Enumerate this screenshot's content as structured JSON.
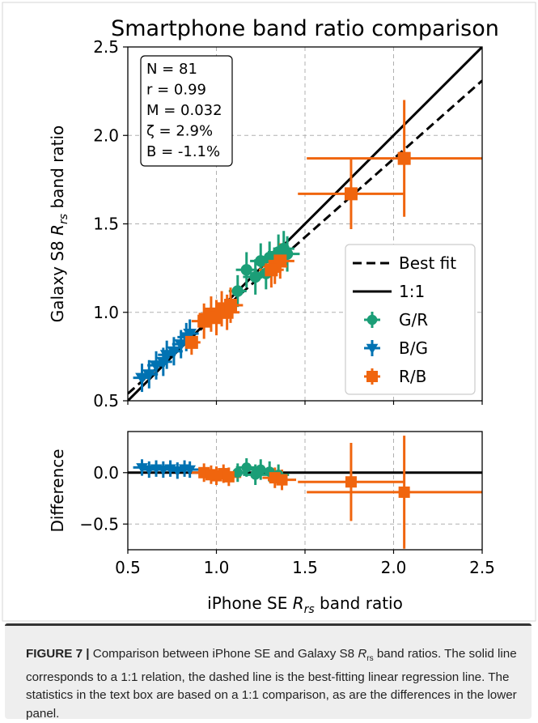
{
  "chart_data": [
    {
      "panel": "main",
      "type": "scatter",
      "title": "Smartphone band ratio comparison",
      "xlabel": "",
      "ylabel_prefix": "Galaxy S8 ",
      "ylabel_var": "R",
      "ylabel_sub": "rs",
      "ylabel_suffix": " band ratio",
      "xlim": [
        0.5,
        2.5
      ],
      "ylim": [
        0.5,
        2.5
      ],
      "xticks": [
        "0.5",
        "1.0",
        "1.5",
        "2.0",
        "2.5"
      ],
      "yticks": [
        "0.5",
        "1.0",
        "1.5",
        "2.0",
        "2.5"
      ],
      "grid": true,
      "stats_box": [
        "N = 81",
        "r = 0.99",
        "M = 0.032",
        "ζ = 2.9%",
        "B = -1.1%"
      ],
      "legend_position": "lower-right",
      "legend": [
        "Best fit",
        "1:1",
        "G/R",
        "B/G",
        "R/B"
      ],
      "lines": [
        {
          "name": "Best fit",
          "style": "dashed",
          "color": "#000000",
          "x": [
            0.5,
            2.5
          ],
          "y": [
            0.54,
            2.31
          ]
        },
        {
          "name": "1:1",
          "style": "solid",
          "color": "#000000",
          "x": [
            0.5,
            2.5
          ],
          "y": [
            0.5,
            2.5
          ]
        }
      ],
      "series": [
        {
          "name": "G/R",
          "marker": "circle",
          "color": "#1b9e77",
          "points": [
            {
              "x": 1.17,
              "y": 1.24,
              "xerr": 0.06,
              "yerr": 0.1
            },
            {
              "x": 1.22,
              "y": 1.2,
              "xerr": 0.07,
              "yerr": 0.1
            },
            {
              "x": 1.25,
              "y": 1.29,
              "xerr": 0.06,
              "yerr": 0.1
            },
            {
              "x": 1.3,
              "y": 1.31,
              "xerr": 0.06,
              "yerr": 0.09
            },
            {
              "x": 1.35,
              "y": 1.34,
              "xerr": 0.06,
              "yerr": 0.1
            },
            {
              "x": 1.4,
              "y": 1.33,
              "xerr": 0.07,
              "yerr": 0.1
            },
            {
              "x": 1.12,
              "y": 1.12,
              "xerr": 0.05,
              "yerr": 0.09
            },
            {
              "x": 1.28,
              "y": 1.22,
              "xerr": 0.06,
              "yerr": 0.09
            },
            {
              "x": 1.38,
              "y": 1.36,
              "xerr": 0.06,
              "yerr": 0.1
            }
          ]
        },
        {
          "name": "B/G",
          "marker": "triangle-down",
          "color": "#0072b2",
          "points": [
            {
              "x": 0.58,
              "y": 0.63,
              "xerr": 0.05,
              "yerr": 0.08
            },
            {
              "x": 0.62,
              "y": 0.65,
              "xerr": 0.05,
              "yerr": 0.08
            },
            {
              "x": 0.66,
              "y": 0.7,
              "xerr": 0.05,
              "yerr": 0.08
            },
            {
              "x": 0.7,
              "y": 0.72,
              "xerr": 0.05,
              "yerr": 0.08
            },
            {
              "x": 0.72,
              "y": 0.76,
              "xerr": 0.05,
              "yerr": 0.08
            },
            {
              "x": 0.76,
              "y": 0.78,
              "xerr": 0.05,
              "yerr": 0.08
            },
            {
              "x": 0.8,
              "y": 0.82,
              "xerr": 0.05,
              "yerr": 0.08
            },
            {
              "x": 0.83,
              "y": 0.86,
              "xerr": 0.05,
              "yerr": 0.08
            },
            {
              "x": 0.85,
              "y": 0.88,
              "xerr": 0.05,
              "yerr": 0.08
            }
          ]
        },
        {
          "name": "R/B",
          "marker": "square",
          "color": "#f0650e",
          "points": [
            {
              "x": 0.86,
              "y": 0.83,
              "xerr": 0.05,
              "yerr": 0.07
            },
            {
              "x": 0.93,
              "y": 0.95,
              "xerr": 0.07,
              "yerr": 0.1
            },
            {
              "x": 0.97,
              "y": 0.99,
              "xerr": 0.07,
              "yerr": 0.1
            },
            {
              "x": 1.0,
              "y": 0.97,
              "xerr": 0.07,
              "yerr": 0.1
            },
            {
              "x": 1.03,
              "y": 1.02,
              "xerr": 0.07,
              "yerr": 0.1
            },
            {
              "x": 1.06,
              "y": 1.0,
              "xerr": 0.07,
              "yerr": 0.1
            },
            {
              "x": 1.08,
              "y": 1.04,
              "xerr": 0.07,
              "yerr": 0.1
            },
            {
              "x": 1.33,
              "y": 1.26,
              "xerr": 0.07,
              "yerr": 0.1
            },
            {
              "x": 1.36,
              "y": 1.29,
              "xerr": 0.08,
              "yerr": 0.1
            },
            {
              "x": 1.31,
              "y": 1.24,
              "xerr": 0.07,
              "yerr": 0.1
            },
            {
              "x": 1.76,
              "y": 1.67,
              "xerr": 0.3,
              "yerr": 0.2
            },
            {
              "x": 2.06,
              "y": 1.87,
              "xerr": 0.55,
              "yerr": 0.33
            }
          ]
        }
      ]
    },
    {
      "panel": "difference",
      "type": "scatter",
      "xlabel_prefix": "iPhone SE ",
      "xlabel_var": "R",
      "xlabel_sub": "rs",
      "xlabel_suffix": " band ratio",
      "ylabel": "Difference",
      "xlim": [
        0.5,
        2.5
      ],
      "ylim": [
        -0.75,
        0.4
      ],
      "xticks": [
        "0.5",
        "1.0",
        "1.5",
        "2.0",
        "2.5"
      ],
      "yticks": [
        "0.0",
        "−0.5"
      ],
      "grid": true,
      "zero_line": true,
      "series": [
        {
          "name": "G/R",
          "marker": "circle",
          "color": "#1b9e77",
          "points": [
            {
              "x": 1.17,
              "y": 0.05,
              "xerr": 0.06,
              "yerr": 0.09
            },
            {
              "x": 1.22,
              "y": -0.02,
              "xerr": 0.07,
              "yerr": 0.1
            },
            {
              "x": 1.25,
              "y": 0.03,
              "xerr": 0.06,
              "yerr": 0.1
            },
            {
              "x": 1.3,
              "y": 0.01,
              "xerr": 0.06,
              "yerr": 0.1
            },
            {
              "x": 1.35,
              "y": -0.02,
              "xerr": 0.06,
              "yerr": 0.1
            },
            {
              "x": 1.12,
              "y": 0.0,
              "xerr": 0.05,
              "yerr": 0.09
            }
          ]
        },
        {
          "name": "B/G",
          "marker": "triangle-down",
          "color": "#0072b2",
          "points": [
            {
              "x": 0.58,
              "y": 0.05,
              "xerr": 0.05,
              "yerr": 0.08
            },
            {
              "x": 0.62,
              "y": 0.03,
              "xerr": 0.05,
              "yerr": 0.08
            },
            {
              "x": 0.66,
              "y": 0.04,
              "xerr": 0.05,
              "yerr": 0.08
            },
            {
              "x": 0.7,
              "y": 0.03,
              "xerr": 0.05,
              "yerr": 0.08
            },
            {
              "x": 0.74,
              "y": 0.04,
              "xerr": 0.05,
              "yerr": 0.08
            },
            {
              "x": 0.78,
              "y": 0.02,
              "xerr": 0.05,
              "yerr": 0.08
            },
            {
              "x": 0.82,
              "y": 0.04,
              "xerr": 0.05,
              "yerr": 0.08
            },
            {
              "x": 0.85,
              "y": 0.03,
              "xerr": 0.05,
              "yerr": 0.08
            }
          ]
        },
        {
          "name": "R/B",
          "marker": "square",
          "color": "#f0650e",
          "points": [
            {
              "x": 0.93,
              "y": 0.0,
              "xerr": 0.07,
              "yerr": 0.09
            },
            {
              "x": 0.97,
              "y": -0.02,
              "xerr": 0.07,
              "yerr": 0.09
            },
            {
              "x": 1.0,
              "y": -0.03,
              "xerr": 0.07,
              "yerr": 0.09
            },
            {
              "x": 1.04,
              "y": -0.01,
              "xerr": 0.07,
              "yerr": 0.09
            },
            {
              "x": 1.07,
              "y": -0.04,
              "xerr": 0.07,
              "yerr": 0.09
            },
            {
              "x": 1.33,
              "y": -0.05,
              "xerr": 0.07,
              "yerr": 0.1
            },
            {
              "x": 1.37,
              "y": -0.07,
              "xerr": 0.08,
              "yerr": 0.1
            },
            {
              "x": 1.76,
              "y": -0.09,
              "xerr": 0.3,
              "yerr": 0.38
            },
            {
              "x": 2.06,
              "y": -0.19,
              "xerr": 0.55,
              "yerr": 0.55
            }
          ]
        }
      ]
    }
  ],
  "caption": {
    "label": "FIGURE 7 |",
    "part1": " Comparison between iPhone SE and Galaxy S8 ",
    "var": "R",
    "sub": "rs",
    "part2": " band ratios. The solid line corresponds to a 1:1 relation, the dashed line is the best-fitting linear regression line. The statistics in the text box are based on a 1:1 comparison, as are the differences in the lower panel."
  }
}
